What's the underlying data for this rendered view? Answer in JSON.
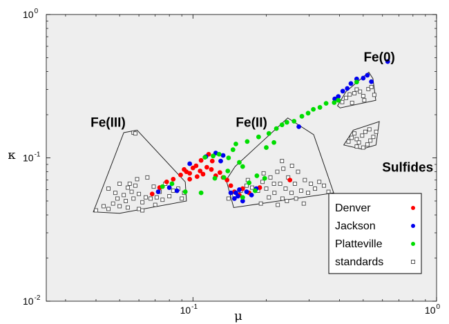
{
  "chart_data": {
    "type": "scatter",
    "x_scale": "log",
    "y_scale": "log",
    "xlim": [
      0.025,
      1
    ],
    "ylim": [
      0.01,
      1
    ],
    "xlabel": "μ",
    "ylabel": "κ",
    "x_ticks": [
      {
        "value": 0.1,
        "base": "10",
        "exp": "-1"
      },
      {
        "value": 1,
        "base": "10",
        "exp": "0"
      }
    ],
    "y_ticks": [
      {
        "value": 0.01,
        "base": "10",
        "exp": "-2"
      },
      {
        "value": 0.1,
        "base": "10",
        "exp": "-1"
      },
      {
        "value": 1,
        "base": "10",
        "exp": "0"
      }
    ],
    "background": "#eeeeee",
    "legend_position": "bottom-right",
    "series": [
      {
        "name": "Denver",
        "color": "#ff0000",
        "marker": "circle",
        "points": [
          [
            0.068,
            0.056
          ],
          [
            0.073,
            0.062
          ],
          [
            0.078,
            0.068
          ],
          [
            0.083,
            0.071
          ],
          [
            0.089,
            0.076
          ],
          [
            0.094,
            0.08
          ],
          [
            0.097,
            0.078
          ],
          [
            0.1,
            0.085
          ],
          [
            0.103,
            0.088
          ],
          [
            0.107,
            0.081
          ],
          [
            0.11,
            0.077
          ],
          [
            0.114,
            0.086
          ],
          [
            0.119,
            0.083
          ],
          [
            0.124,
            0.075
          ],
          [
            0.129,
            0.079
          ],
          [
            0.133,
            0.073
          ],
          [
            0.138,
            0.07
          ],
          [
            0.143,
            0.064
          ],
          [
            0.148,
            0.058
          ],
          [
            0.155,
            0.055
          ],
          [
            0.16,
            0.061
          ],
          [
            0.17,
            0.057
          ],
          [
            0.188,
            0.062
          ],
          [
            0.25,
            0.07
          ],
          [
            0.108,
            0.096
          ],
          [
            0.12,
            0.095
          ],
          [
            0.104,
            0.074
          ],
          [
            0.092,
            0.083
          ],
          [
            0.116,
            0.106
          ],
          [
            0.097,
            0.071
          ]
        ]
      },
      {
        "name": "Jackson",
        "color": "#0000ee",
        "marker": "circle",
        "points": [
          [
            0.072,
            0.058
          ],
          [
            0.08,
            0.062
          ],
          [
            0.086,
            0.059
          ],
          [
            0.097,
            0.091
          ],
          [
            0.113,
            0.102
          ],
          [
            0.124,
            0.108
          ],
          [
            0.13,
            0.095
          ],
          [
            0.133,
            0.104
          ],
          [
            0.143,
            0.057
          ],
          [
            0.148,
            0.052
          ],
          [
            0.155,
            0.06
          ],
          [
            0.16,
            0.05
          ],
          [
            0.166,
            0.058
          ],
          [
            0.174,
            0.055
          ],
          [
            0.182,
            0.061
          ],
          [
            0.153,
            0.054
          ],
          [
            0.272,
            0.165
          ],
          [
            0.382,
            0.258
          ],
          [
            0.395,
            0.268
          ],
          [
            0.412,
            0.292
          ],
          [
            0.43,
            0.305
          ],
          [
            0.445,
            0.33
          ],
          [
            0.47,
            0.355
          ],
          [
            0.5,
            0.36
          ],
          [
            0.52,
            0.377
          ],
          [
            0.54,
            0.34
          ],
          [
            0.63,
            0.47
          ],
          [
            0.15,
            0.057
          ]
        ]
      },
      {
        "name": "Platteville",
        "color": "#00dd00",
        "marker": "circle",
        "points": [
          [
            0.075,
            0.063
          ],
          [
            0.082,
            0.066
          ],
          [
            0.093,
            0.058
          ],
          [
            0.108,
            0.057
          ],
          [
            0.112,
            0.101
          ],
          [
            0.121,
            0.103
          ],
          [
            0.128,
            0.106
          ],
          [
            0.134,
            0.073
          ],
          [
            0.139,
            0.081
          ],
          [
            0.14,
            0.1
          ],
          [
            0.146,
            0.114
          ],
          [
            0.15,
            0.125
          ],
          [
            0.155,
            0.093
          ],
          [
            0.16,
            0.087
          ],
          [
            0.167,
            0.13
          ],
          [
            0.17,
            0.067
          ],
          [
            0.183,
            0.075
          ],
          [
            0.186,
            0.14
          ],
          [
            0.197,
            0.072
          ],
          [
            0.205,
            0.148
          ],
          [
            0.22,
            0.16
          ],
          [
            0.232,
            0.17
          ],
          [
            0.243,
            0.177
          ],
          [
            0.26,
            0.18
          ],
          [
            0.28,
            0.195
          ],
          [
            0.297,
            0.205
          ],
          [
            0.312,
            0.218
          ],
          [
            0.332,
            0.225
          ],
          [
            0.352,
            0.24
          ],
          [
            0.38,
            0.243
          ],
          [
            0.395,
            0.252
          ],
          [
            0.47,
            0.338
          ],
          [
            0.18,
            0.059
          ],
          [
            0.123,
            0.072
          ],
          [
            0.2,
            0.118
          ],
          [
            0.215,
            0.128
          ],
          [
            0.16,
            0.053
          ]
        ]
      },
      {
        "name": "standards",
        "color": "#444444",
        "marker": "open-square",
        "points": [
          [
            0.04,
            0.043
          ],
          [
            0.043,
            0.046
          ],
          [
            0.045,
            0.044
          ],
          [
            0.047,
            0.048
          ],
          [
            0.049,
            0.052
          ],
          [
            0.05,
            0.046
          ],
          [
            0.052,
            0.055
          ],
          [
            0.053,
            0.05
          ],
          [
            0.054,
            0.062
          ],
          [
            0.055,
            0.066
          ],
          [
            0.056,
            0.058
          ],
          [
            0.057,
            0.052
          ],
          [
            0.058,
            0.064
          ],
          [
            0.059,
            0.071
          ],
          [
            0.06,
            0.044
          ],
          [
            0.06,
            0.056
          ],
          [
            0.062,
            0.049
          ],
          [
            0.064,
            0.053
          ],
          [
            0.065,
            0.073
          ],
          [
            0.067,
            0.052
          ],
          [
            0.069,
            0.063
          ],
          [
            0.071,
            0.053
          ],
          [
            0.073,
            0.058
          ],
          [
            0.075,
            0.051
          ],
          [
            0.077,
            0.066
          ],
          [
            0.08,
            0.054
          ],
          [
            0.083,
            0.059
          ],
          [
            0.087,
            0.061
          ],
          [
            0.09,
            0.052
          ],
          [
            0.092,
            0.057
          ],
          [
            0.062,
            0.043
          ],
          [
            0.07,
            0.047
          ],
          [
            0.054,
            0.045
          ],
          [
            0.045,
            0.061
          ],
          [
            0.048,
            0.057
          ],
          [
            0.057,
            0.15
          ],
          [
            0.058,
            0.148
          ],
          [
            0.05,
            0.066
          ],
          [
            0.14,
            0.052
          ],
          [
            0.148,
            0.055
          ],
          [
            0.157,
            0.059
          ],
          [
            0.166,
            0.064
          ],
          [
            0.175,
            0.062
          ],
          [
            0.185,
            0.059
          ],
          [
            0.193,
            0.068
          ],
          [
            0.2,
            0.061
          ],
          [
            0.208,
            0.073
          ],
          [
            0.216,
            0.057
          ],
          [
            0.222,
            0.08
          ],
          [
            0.228,
            0.066
          ],
          [
            0.233,
            0.052
          ],
          [
            0.24,
            0.061
          ],
          [
            0.246,
            0.073
          ],
          [
            0.254,
            0.057
          ],
          [
            0.262,
            0.066
          ],
          [
            0.27,
            0.08
          ],
          [
            0.278,
            0.059
          ],
          [
            0.288,
            0.07
          ],
          [
            0.297,
            0.057
          ],
          [
            0.305,
            0.066
          ],
          [
            0.317,
            0.061
          ],
          [
            0.33,
            0.068
          ],
          [
            0.345,
            0.064
          ],
          [
            0.36,
            0.058
          ],
          [
            0.375,
            0.055
          ],
          [
            0.19,
            0.048
          ],
          [
            0.205,
            0.053
          ],
          [
            0.223,
            0.047
          ],
          [
            0.243,
            0.05
          ],
          [
            0.265,
            0.052
          ],
          [
            0.285,
            0.048
          ],
          [
            0.168,
            0.07
          ],
          [
            0.215,
            0.066
          ],
          [
            0.235,
            0.084
          ],
          [
            0.255,
            0.088
          ],
          [
            0.232,
            0.095
          ],
          [
            0.195,
            0.078
          ],
          [
            0.41,
            0.245
          ],
          [
            0.425,
            0.262
          ],
          [
            0.44,
            0.277
          ],
          [
            0.46,
            0.282
          ],
          [
            0.485,
            0.29
          ],
          [
            0.505,
            0.252
          ],
          [
            0.525,
            0.302
          ],
          [
            0.54,
            0.312
          ],
          [
            0.45,
            0.242
          ],
          [
            0.5,
            0.27
          ],
          [
            0.555,
            0.275
          ],
          [
            0.47,
            0.3
          ],
          [
            0.435,
            0.13
          ],
          [
            0.448,
            0.138
          ],
          [
            0.46,
            0.148
          ],
          [
            0.47,
            0.135
          ],
          [
            0.48,
            0.128
          ],
          [
            0.495,
            0.143
          ],
          [
            0.51,
            0.152
          ],
          [
            0.52,
            0.124
          ],
          [
            0.535,
            0.132
          ],
          [
            0.55,
            0.14
          ],
          [
            0.565,
            0.152
          ],
          [
            0.5,
            0.118
          ],
          [
            0.53,
            0.158
          ],
          [
            0.47,
            0.12
          ]
        ]
      }
    ],
    "regions": [
      {
        "label": "Fe(III)",
        "label_anchor": [
          0.038,
          0.165
        ],
        "hull": [
          [
            0.039,
            0.042
          ],
          [
            0.052,
            0.15
          ],
          [
            0.059,
            0.156
          ],
          [
            0.093,
            0.068
          ],
          [
            0.094,
            0.05
          ],
          [
            0.05,
            0.041
          ],
          [
            0.039,
            0.042
          ]
        ]
      },
      {
        "label": "Fe(II)",
        "label_anchor": [
          0.15,
          0.165
        ],
        "hull": [
          [
            0.137,
            0.07
          ],
          [
            0.149,
            0.087
          ],
          [
            0.245,
            0.19
          ],
          [
            0.313,
            0.145
          ],
          [
            0.355,
            0.078
          ],
          [
            0.378,
            0.057
          ],
          [
            0.147,
            0.045
          ],
          [
            0.137,
            0.07
          ]
        ]
      },
      {
        "label": "Fe(0)",
        "label_anchor": [
          0.502,
          0.47
        ],
        "hull": [
          [
            0.392,
            0.231
          ],
          [
            0.425,
            0.29
          ],
          [
            0.527,
            0.396
          ],
          [
            0.548,
            0.357
          ],
          [
            0.563,
            0.252
          ],
          [
            0.402,
            0.223
          ],
          [
            0.392,
            0.231
          ]
        ]
      },
      {
        "label": "Sulfides",
        "label_anchor": [
          0.598,
          0.08
        ],
        "hull": [
          [
            0.416,
            0.123
          ],
          [
            0.455,
            0.156
          ],
          [
            0.582,
            0.179
          ],
          [
            0.564,
            0.123
          ],
          [
            0.493,
            0.115
          ],
          [
            0.416,
            0.123
          ]
        ]
      }
    ]
  }
}
